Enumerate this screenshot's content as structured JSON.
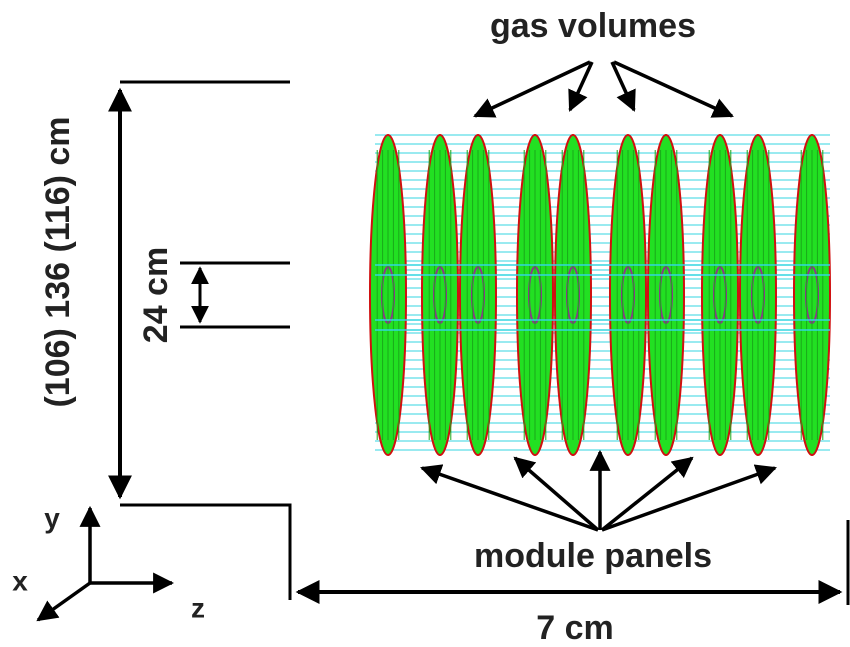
{
  "labels": {
    "gas_volumes": "gas volumes",
    "module_panels": "module panels",
    "height": "(106) 136 (116) cm",
    "inner_height": "24 cm",
    "length": "7 cm"
  },
  "axes": {
    "x": "x",
    "y": "y",
    "z": "z"
  }
}
